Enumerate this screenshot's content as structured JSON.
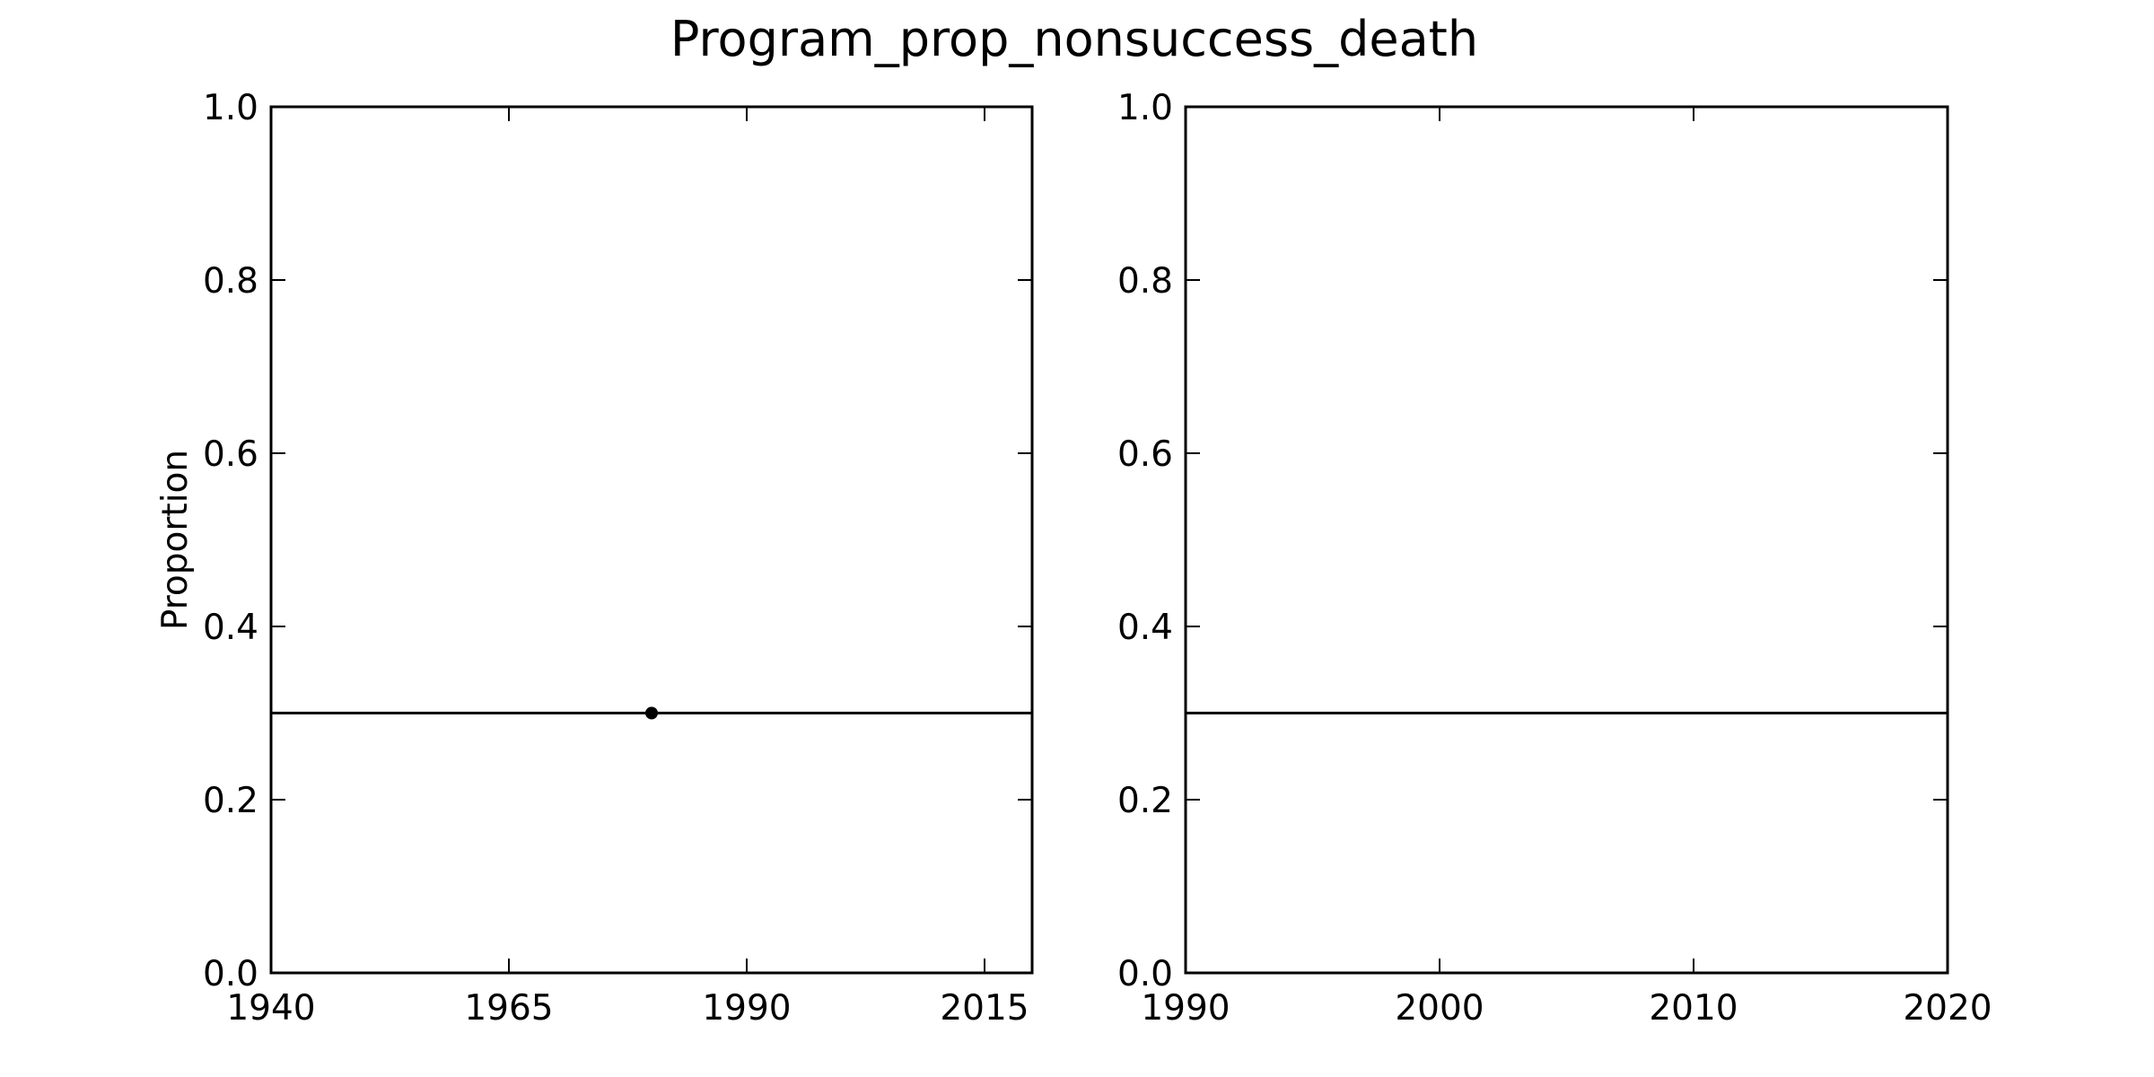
{
  "title": "Program_prop_nonsuccess_death",
  "chart_data": [
    {
      "type": "line",
      "title": "",
      "xlabel": "",
      "ylabel": "Proportion",
      "xlim": [
        1940,
        2020
      ],
      "ylim": [
        0.0,
        1.0
      ],
      "x_ticks": [
        1940,
        1965,
        1990,
        2015
      ],
      "x_tick_labels": [
        "1940",
        "1965",
        "1990",
        "2015"
      ],
      "y_ticks": [
        0.0,
        0.2,
        0.4,
        0.6,
        0.8,
        1.0
      ],
      "y_tick_labels": [
        "0.0",
        "0.2",
        "0.4",
        "0.6",
        "0.8",
        "1.0"
      ],
      "grid": false,
      "series": [
        {
          "x": [
            1940,
            2020
          ],
          "y": [
            0.3,
            0.3
          ],
          "color": "#000000"
        }
      ],
      "points": [
        {
          "x": 1980,
          "y": 0.3,
          "color": "#000000"
        }
      ]
    },
    {
      "type": "line",
      "title": "",
      "xlabel": "",
      "ylabel": "",
      "xlim": [
        1990,
        2020
      ],
      "ylim": [
        0.0,
        1.0
      ],
      "x_ticks": [
        1990,
        2000,
        2010,
        2020
      ],
      "x_tick_labels": [
        "1990",
        "2000",
        "2010",
        "2020"
      ],
      "y_ticks": [
        0.0,
        0.2,
        0.4,
        0.6,
        0.8,
        1.0
      ],
      "y_tick_labels": [
        "0.0",
        "0.2",
        "0.4",
        "0.6",
        "0.8",
        "1.0"
      ],
      "grid": false,
      "series": [
        {
          "x": [
            1990,
            2020
          ],
          "y": [
            0.3,
            0.3
          ],
          "color": "#000000"
        }
      ],
      "points": []
    }
  ]
}
